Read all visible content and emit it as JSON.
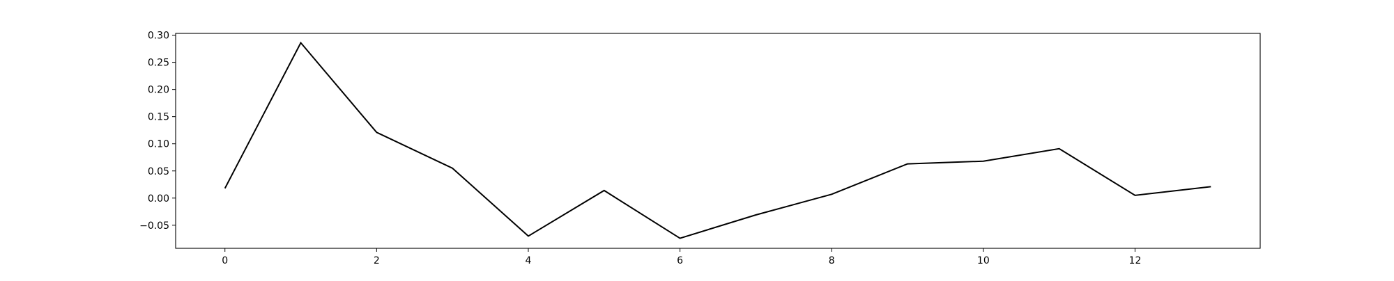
{
  "chart_data": {
    "type": "line",
    "title": "",
    "xlabel": "",
    "ylabel": "",
    "x": [
      0,
      1,
      2,
      3,
      4,
      5,
      6,
      7,
      8,
      9,
      10,
      11,
      12,
      13
    ],
    "series": [
      {
        "values": [
          0.018,
          0.286,
          0.121,
          0.055,
          -0.07,
          0.014,
          -0.074,
          -0.031,
          0.007,
          0.063,
          0.068,
          0.091,
          0.005,
          0.021
        ],
        "color": "#000000"
      }
    ],
    "xlim": [
      -0.65,
      13.65
    ],
    "ylim": [
      -0.0925,
      0.3033
    ],
    "xticks": [
      0,
      2,
      4,
      6,
      8,
      10,
      12
    ],
    "xtick_labels": [
      "0",
      "2",
      "4",
      "6",
      "8",
      "10",
      "12"
    ],
    "yticks": [
      -0.05,
      0.0,
      0.05,
      0.1,
      0.15,
      0.2,
      0.25,
      0.3
    ],
    "ytick_labels": [
      "−0.05",
      "0.00",
      "0.05",
      "0.10",
      "0.15",
      "0.20",
      "0.25",
      "0.30"
    ],
    "grid": false,
    "legend": "none"
  }
}
